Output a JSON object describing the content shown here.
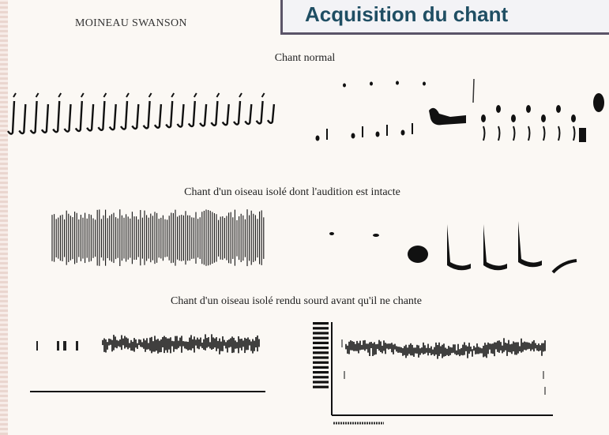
{
  "header": {
    "title": "Acquisition du chant"
  },
  "figure": {
    "species": "MOINEAU SWANSON",
    "captions": [
      "Chant normal",
      "Chant d'un oiseau isolé dont l'audition est intacte",
      "Chant d'un oiseau isolé rendu sourd avant qu'il ne chante"
    ]
  }
}
